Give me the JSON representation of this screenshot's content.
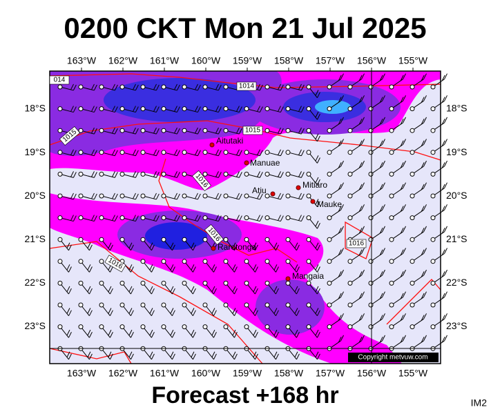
{
  "title": "0200 CKT Mon 21 Jul 2025",
  "lon_labels": [
    "163°W",
    "162°W",
    "161°W",
    "160°W",
    "159°W",
    "158°W",
    "157°W",
    "156°W",
    "155°W"
  ],
  "lat_labels": [
    "18°S",
    "19°S",
    "20°S",
    "21°S",
    "22°S",
    "23°S"
  ],
  "places": [
    {
      "label": "Aitutaki"
    },
    {
      "label": "Manuae"
    },
    {
      "label": "Atiu"
    },
    {
      "label": "Mitiaro"
    },
    {
      "label": "Mauke"
    },
    {
      "label": "Rarotonga"
    },
    {
      "label": "Mangaia"
    }
  ],
  "isobar_labels": [
    "014",
    "1014",
    "1015",
    "1015",
    "1016",
    "1016",
    "1016",
    "1016"
  ],
  "copyright": "Copyright metvuw.com",
  "footer": "Forecast +168 hr",
  "corner": "IM2"
}
